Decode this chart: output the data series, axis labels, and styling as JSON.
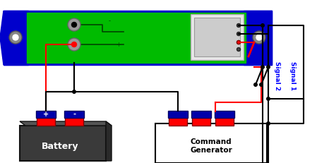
{
  "bg_color": "#ffffff",
  "module_green": "#00bb00",
  "module_blue": "#0000cc",
  "battery_dark": "#3a3a3a",
  "battery_label": "Battery",
  "generator_label": "Command\nGenerator",
  "signal1_label": "Signal 1",
  "signal2_label": "Signal 2",
  "red": "#ff0000",
  "black": "#000000",
  "blue": "#0000ff",
  "white": "#ffffff",
  "gray": "#888888",
  "dark_blue_term": "#0000aa",
  "connector_bg": "#e8e8e8",
  "connector_inner": "#cccccc"
}
